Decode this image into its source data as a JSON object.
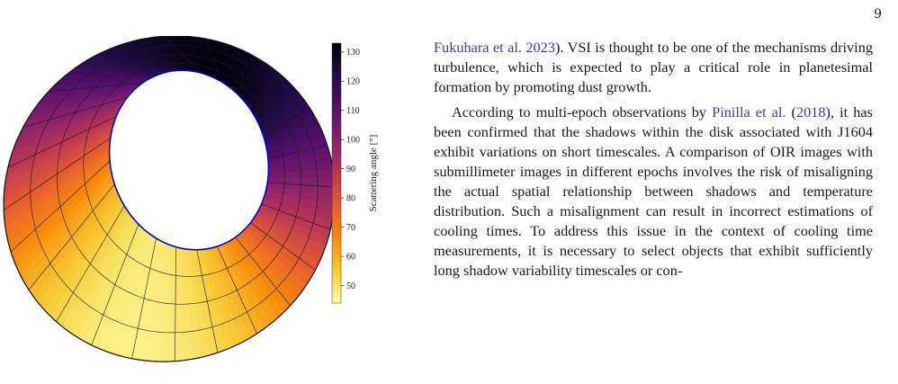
{
  "page_number": "9",
  "figure": {
    "colorbar": {
      "label": "Scattering angle [°]",
      "ticks": [
        "130",
        "120",
        "110",
        "100",
        "90",
        "80",
        "70",
        "60",
        "50"
      ],
      "range": [
        44,
        133
      ],
      "colormap": "inferno",
      "colors": [
        "#fcffa4",
        "#f8c932",
        "#f98c0a",
        "#e55c30",
        "#bc3754",
        "#89226a",
        "#57106e",
        "#210c4a",
        "#000004"
      ]
    },
    "disk": {
      "outline_color": "#0000cc",
      "grid_color": "#1a1a1a"
    }
  },
  "body": {
    "paragraph1": {
      "cite1": "Fukuhara et al. 2023",
      "text1": "). VSI is thought to be one of the mechanisms driving turbulence, which is expected to play a critical role in planetesimal formation by promoting dust growth."
    },
    "paragraph2": {
      "text1": "According to multi-epoch observations by ",
      "cite1": "Pinilla et al.",
      "text2": " (",
      "cite2": "2018",
      "text3": "), it has been confirmed that the shadows within the disk associated with J1604 exhibit variations on short timescales. A comparison of OIR images with submillimeter images in different epochs involves the risk of misaligning the actual spatial relationship between shadows and temperature distribution. Such a misalignment can result in incorrect estimations of cooling times. To address this issue in the context of cooling time measurements, it is necessary to select objects that exhibit sufficiently long shadow variability timescales or con-"
    }
  }
}
